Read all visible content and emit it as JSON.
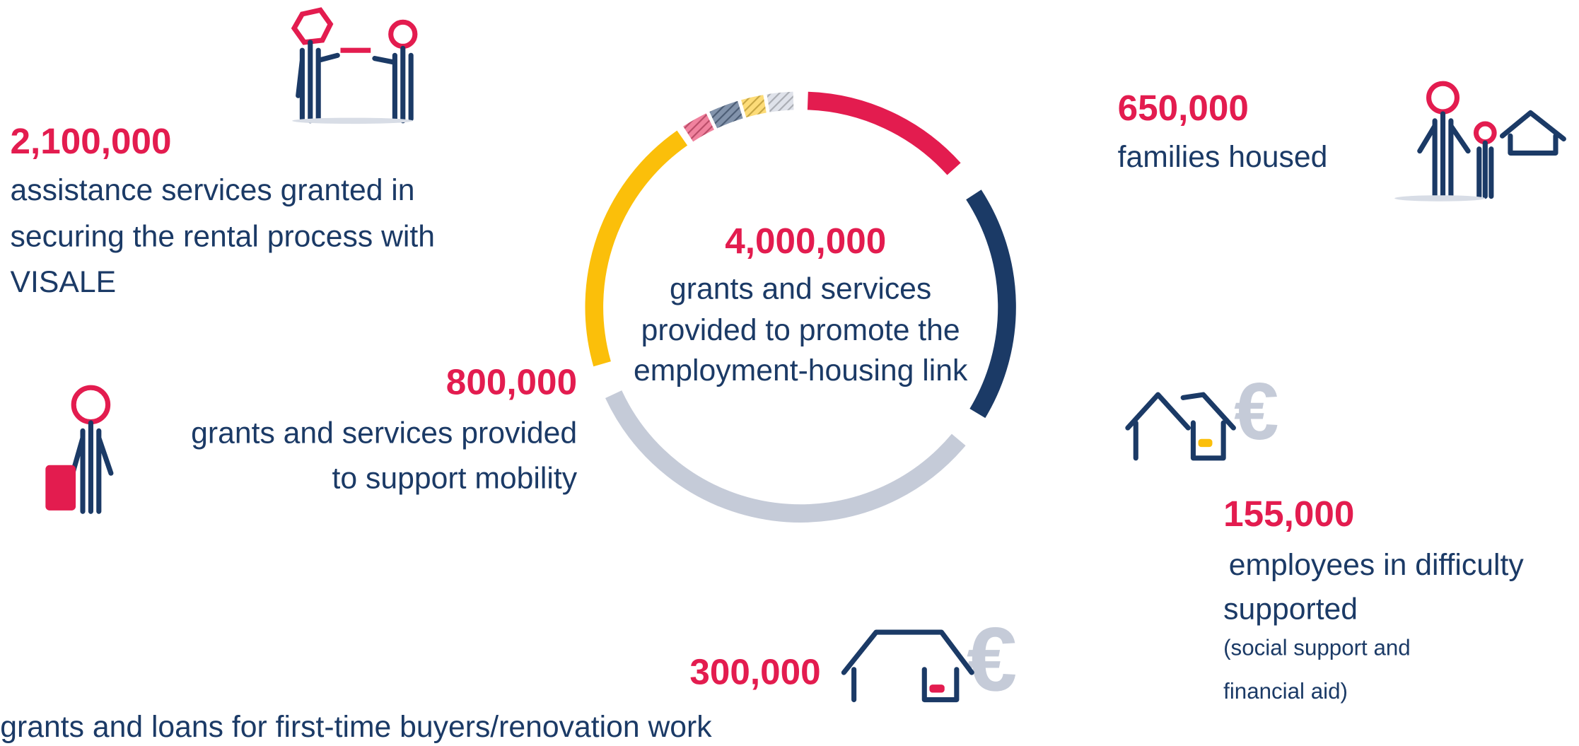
{
  "center": {
    "value": "4,000,000",
    "lines": [
      "grants and services",
      "provided to promote the",
      "employment-housing link"
    ]
  },
  "items": [
    {
      "value": "2,100,000",
      "lines": [
        "assistance services granted in",
        "securing the rental process with",
        "VISALE"
      ]
    },
    {
      "value": "650,000",
      "lines": [
        "families housed"
      ]
    },
    {
      "value": "800,000",
      "lines": [
        "grants and services provided",
        "to support mobility"
      ]
    },
    {
      "value": "155,000",
      "lines": [
        " employees in difficulty",
        "supported"
      ],
      "note": [
        "(social support and",
        "financial aid)"
      ]
    },
    {
      "value": "300,000",
      "lines": [
        "grants and loans for first-time buyers/renovation work"
      ]
    }
  ]
}
